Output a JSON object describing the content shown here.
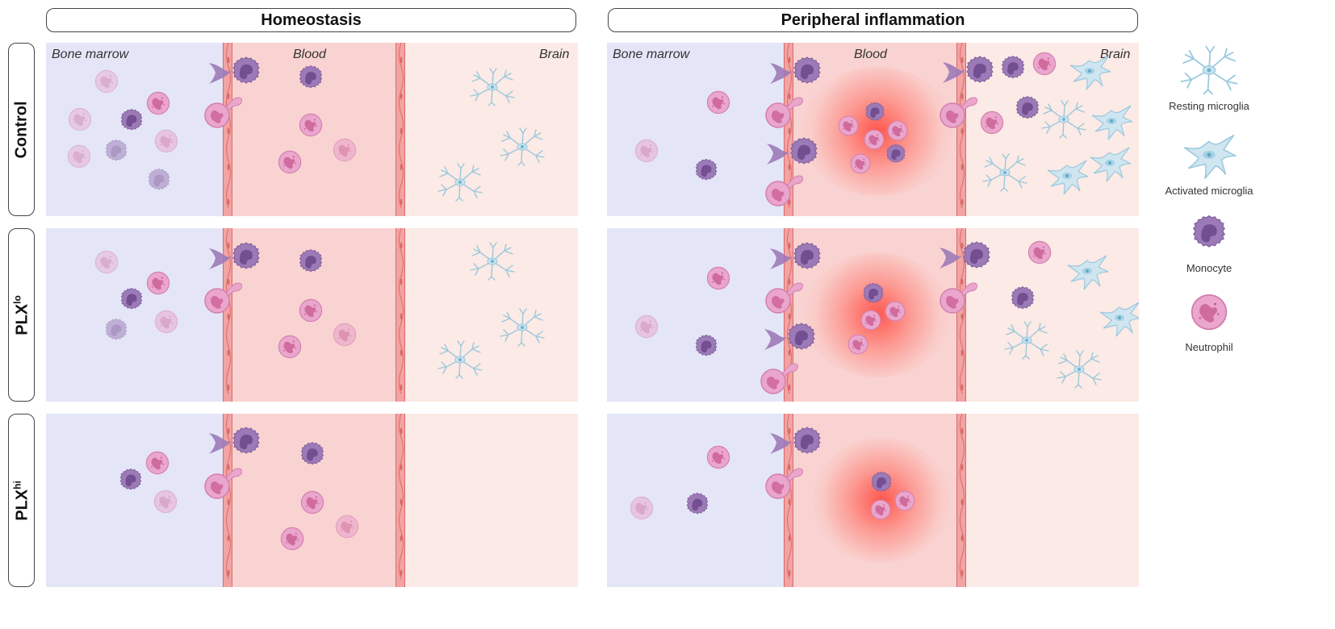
{
  "columns": {
    "homeostasis": "Homeostasis",
    "inflammation": "Peripheral inflammation"
  },
  "rows": {
    "control": "Control",
    "plx_lo": {
      "base": "PLX",
      "sup": "lo"
    },
    "plx_hi": {
      "base": "PLX",
      "sup": "hi"
    }
  },
  "zones": {
    "marrow": "Bone marrow",
    "blood": "Blood",
    "brain": "Brain"
  },
  "legend": {
    "resting": "Resting microglia",
    "activated": "Activated microglia",
    "monocyte": "Monocyte",
    "neutrophil": "Neutrophil"
  },
  "colors": {
    "marrow_bg": "#e4e6f8",
    "blood_bg": "#f9d3d1",
    "brain_bg": "#fbeae5",
    "vessel_wall": "#f2a3a3",
    "monocyte": "#9a78b4",
    "neutrophil": "#e8a2c8",
    "microglia": "#a9d1e3",
    "inflammation": "#ff5046"
  }
}
